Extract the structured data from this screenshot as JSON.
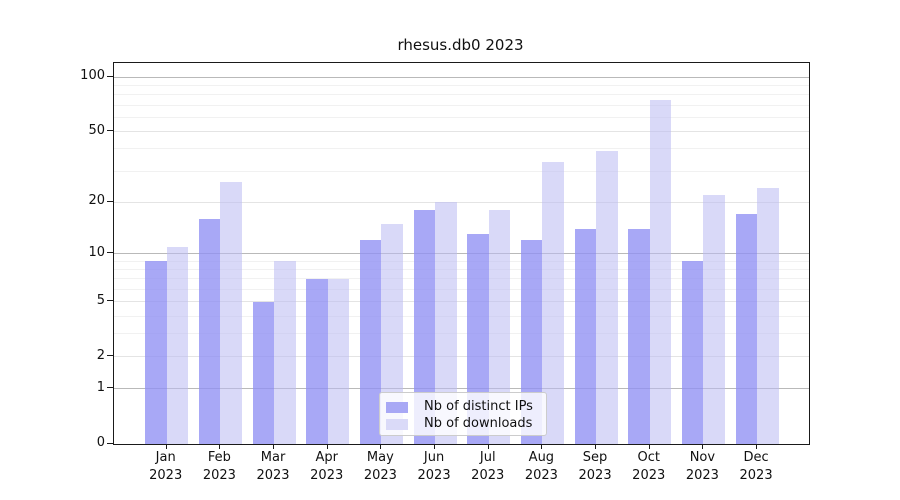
{
  "title": "rhesus.db0 2023",
  "chart_data": {
    "type": "bar",
    "title": "rhesus.db0 2023",
    "categories": [
      "Jan",
      "Feb",
      "Mar",
      "Apr",
      "May",
      "Jun",
      "Jul",
      "Aug",
      "Sep",
      "Oct",
      "Nov",
      "Dec"
    ],
    "year_label": "2023",
    "series": [
      {
        "name": "Nb of distinct IPs",
        "color": "#a8a8f5",
        "values": [
          9,
          16,
          5,
          7,
          12,
          18,
          13,
          12,
          14,
          14,
          9,
          17
        ]
      },
      {
        "name": "Nb of downloads",
        "color": "#dadaf8",
        "values": [
          11,
          26,
          9,
          7,
          15,
          20,
          18,
          34,
          39,
          75,
          22,
          24
        ]
      }
    ],
    "xlabel": "",
    "ylabel": "",
    "y_scale": "log1p",
    "ylim": [
      0,
      120
    ],
    "y_ticks": [
      0,
      1,
      2,
      5,
      10,
      20,
      50,
      100
    ],
    "grid_power_lines": [
      1,
      10,
      100
    ],
    "grid_major_lines": [
      2,
      5,
      20,
      50
    ],
    "grid_minor_lines": [
      3,
      4,
      6,
      7,
      8,
      9,
      30,
      40,
      60,
      70,
      80,
      90
    ],
    "legend_position": "bottom-center",
    "legend": [
      "Nb of distinct IPs",
      "Nb of downloads"
    ]
  }
}
